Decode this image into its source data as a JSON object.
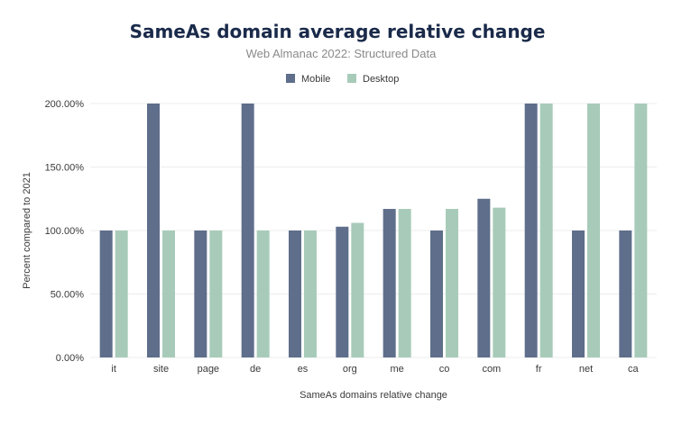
{
  "chart_data": {
    "type": "bar",
    "title": "SameAs domain average relative change",
    "subtitle": "Web Almanac 2022: Structured Data",
    "xlabel": "SameAs domains relative change",
    "ylabel": "Percent compared to 2021",
    "ylim": [
      0,
      200
    ],
    "yticks": [
      "0.00%",
      "50.00%",
      "100.00%",
      "150.00%",
      "200.00%"
    ],
    "ytick_values": [
      0,
      50,
      100,
      150,
      200
    ],
    "grid": true,
    "legend_position": "top-center",
    "categories": [
      "it",
      "site",
      "page",
      "de",
      "es",
      "org",
      "me",
      "co",
      "com",
      "fr",
      "net",
      "ca"
    ],
    "series": [
      {
        "name": "Mobile",
        "color": "#5e6e8b",
        "values": [
          100,
          200,
          100,
          200,
          100,
          103,
          117,
          100,
          125,
          200,
          100,
          100
        ]
      },
      {
        "name": "Desktop",
        "color": "#a8cbb9",
        "values": [
          100,
          100,
          100,
          100,
          100,
          106,
          117,
          117,
          118,
          200,
          200,
          200
        ]
      }
    ],
    "colors": {
      "title": "#1a2a4a",
      "subtitle": "#8a8a8a",
      "text": "#3a3a3a",
      "grid": "#ececec"
    }
  }
}
